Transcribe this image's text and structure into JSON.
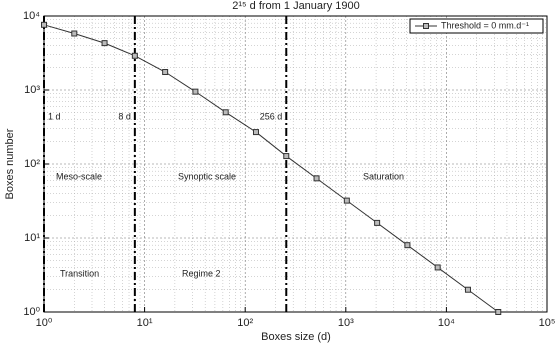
{
  "chart_data": {
    "type": "line",
    "title": "2¹⁵ d from 1 January 1900",
    "x_label": "Boxes size (d)",
    "y_label": "Boxes number",
    "log_x": true,
    "log_y": true,
    "grid": true,
    "legend": "upper right",
    "x": [
      1,
      2,
      4,
      8,
      16,
      32,
      64,
      128,
      256,
      512,
      1024,
      2048,
      4096,
      8192,
      16384,
      32768
    ],
    "series": [
      {
        "name": "Threshold = 0 mm.d⁻¹",
        "color": "#333333",
        "values": [
          7600,
          5800,
          4300,
          2900,
          1750,
          950,
          500,
          270,
          128,
          64,
          32,
          16,
          8,
          4,
          2,
          1
        ]
      }
    ],
    "xlim": [
      1,
      100000
    ],
    "xticks": [
      {
        "value": 1,
        "label": "10⁰"
      },
      {
        "value": 10,
        "label": "10¹"
      },
      {
        "value": 100,
        "label": "10²"
      },
      {
        "value": 1000,
        "label": "10³"
      },
      {
        "value": 10000,
        "label": "10⁴"
      },
      {
        "value": 100000,
        "label": "10⁵"
      }
    ],
    "ylim": [
      1,
      10000
    ],
    "yticks": [
      {
        "value": 1,
        "label": "10⁰"
      },
      {
        "value": 10,
        "label": "10¹"
      },
      {
        "value": 100,
        "label": "10²"
      },
      {
        "value": 1000,
        "label": "10³"
      },
      {
        "value": 10000,
        "label": "10⁴"
      }
    ],
    "vlines": [
      {
        "value": 1,
        "label": "1 d"
      },
      {
        "value": 8,
        "label": "8 d"
      },
      {
        "value": 256,
        "label": "256 d"
      }
    ],
    "annotations": [
      "Meso-scale",
      "Synoptic scale",
      "Saturation",
      "Transition",
      "Regime 2"
    ]
  }
}
